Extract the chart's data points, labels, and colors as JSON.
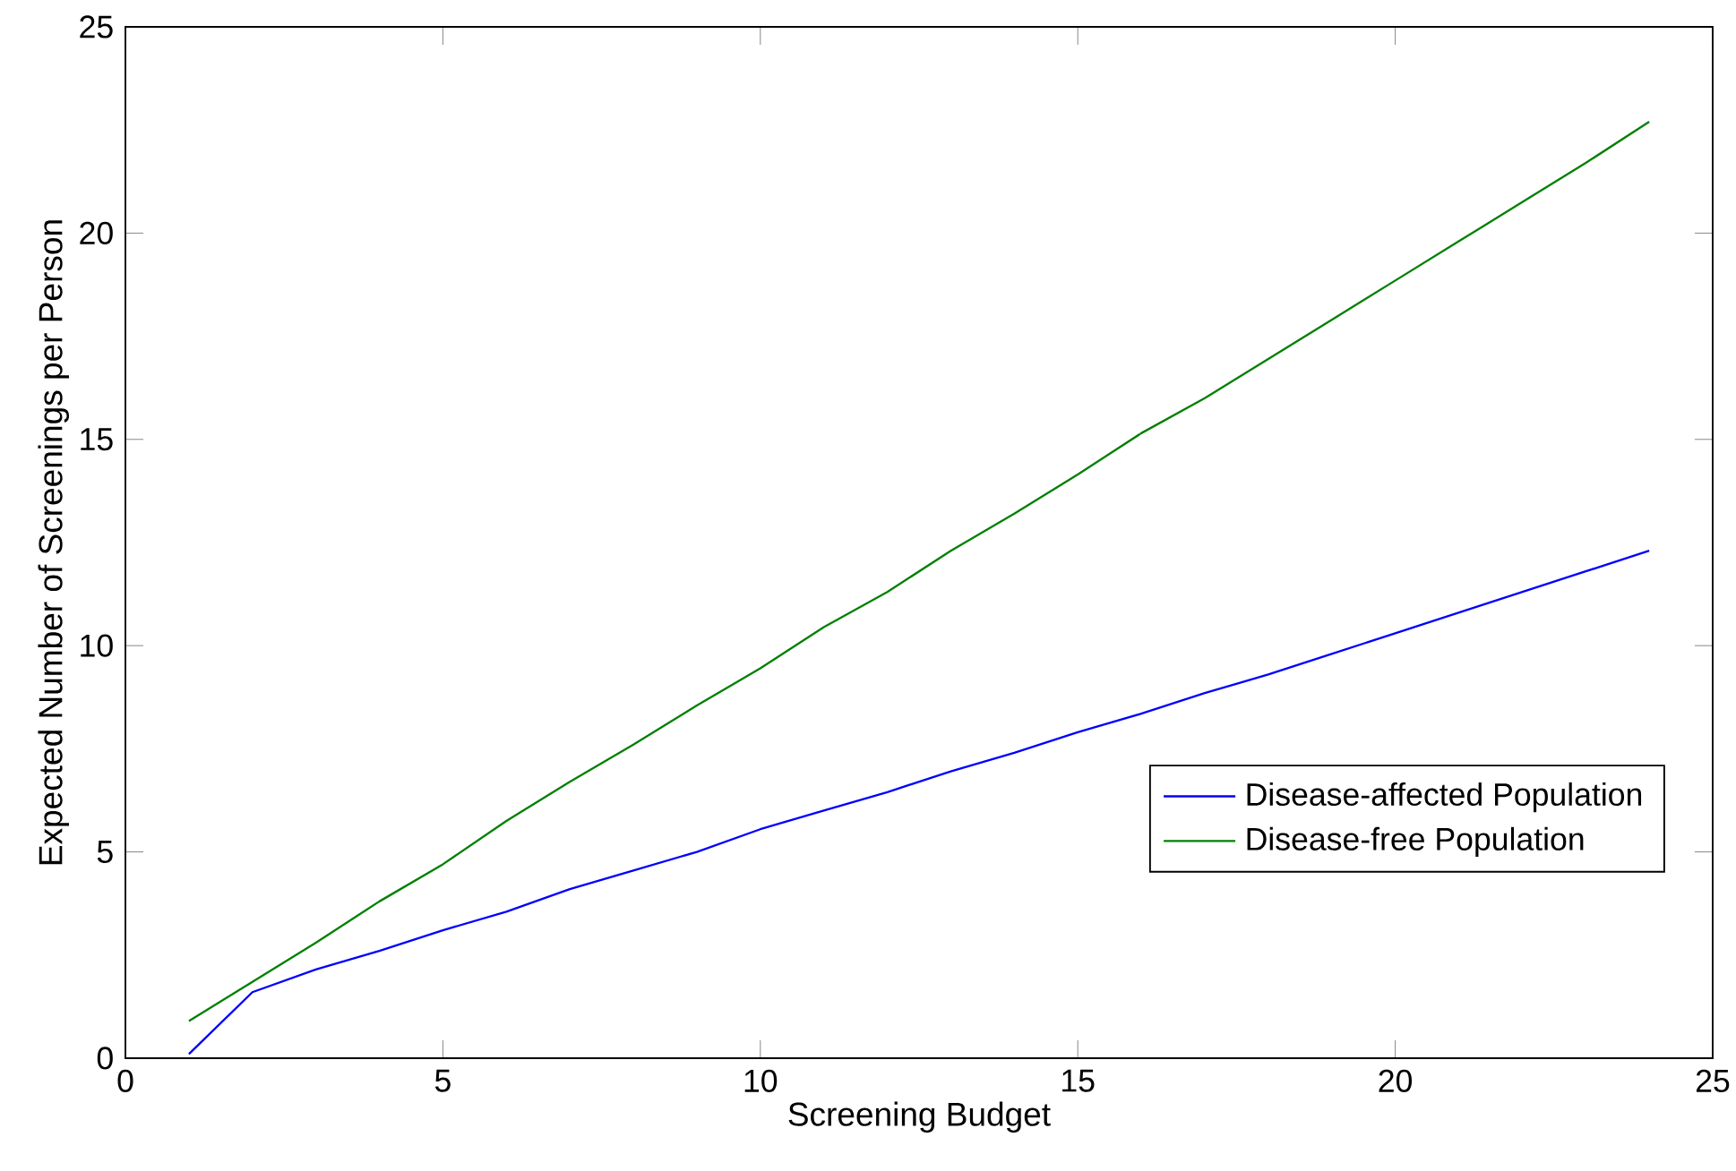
{
  "chart_data": {
    "type": "line",
    "xlabel": "Screening Budget",
    "ylabel": "Expected Number of Screenings per Person",
    "x": [
      1,
      2,
      3,
      4,
      5,
      6,
      7,
      8,
      9,
      10,
      11,
      12,
      13,
      14,
      15,
      16,
      17,
      18,
      19,
      20,
      21,
      22,
      23,
      24
    ],
    "series": [
      {
        "name": "Disease-affected Population",
        "color": "#0000ff",
        "values": [
          0.1,
          1.6,
          2.15,
          2.6,
          3.1,
          3.55,
          4.1,
          4.55,
          5.0,
          5.55,
          6.0,
          6.45,
          6.95,
          7.4,
          7.9,
          8.35,
          8.85,
          9.3,
          9.8,
          10.3,
          10.8,
          11.3,
          11.8,
          12.3
        ]
      },
      {
        "name": "Disease-free Population",
        "color": "#008000",
        "values": [
          0.9,
          1.85,
          2.8,
          3.8,
          4.7,
          5.75,
          6.7,
          7.6,
          8.55,
          9.45,
          10.45,
          11.3,
          12.3,
          13.2,
          14.15,
          15.15,
          16.0,
          16.95,
          17.9,
          18.85,
          19.8,
          20.75,
          21.7,
          22.7
        ]
      }
    ],
    "xlim": [
      0,
      25
    ],
    "xticks": [
      0,
      5,
      10,
      15,
      20,
      25
    ],
    "ylim": [
      0,
      25
    ],
    "yticks": [
      0,
      5,
      10,
      15,
      20,
      25
    ],
    "grid": false,
    "legend": "bottom right",
    "marker": "none",
    "line_style": "solid"
  }
}
